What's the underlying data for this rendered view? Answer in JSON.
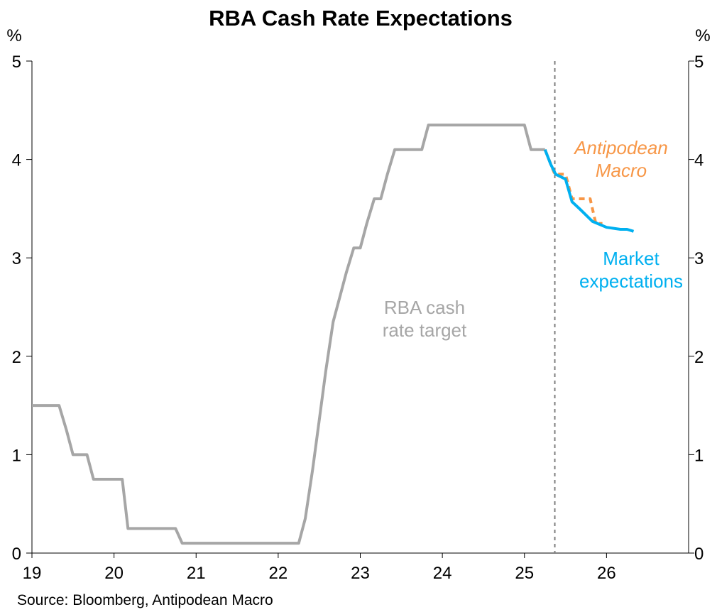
{
  "chart_data": {
    "type": "line",
    "title": "RBA Cash Rate Expectations",
    "y_unit_left": "%",
    "y_unit_right": "%",
    "ylim": [
      0,
      5
    ],
    "yticks": [
      "0",
      "1",
      "2",
      "3",
      "4",
      "5"
    ],
    "xlim": [
      19,
      27
    ],
    "xticks": [
      "19",
      "20",
      "21",
      "22",
      "23",
      "24",
      "25",
      "26"
    ],
    "grid": false,
    "legend": "none",
    "forecast_divider_x": 25.37,
    "source": "Source: Bloomberg, Antipodean Macro",
    "series": [
      {
        "name": "RBA cash rate target",
        "label_lines": [
          "RBA cash",
          "rate target"
        ],
        "color": "#a6a6a6",
        "dash": "none",
        "points": [
          [
            19.0,
            1.5
          ],
          [
            19.33,
            1.5
          ],
          [
            19.42,
            1.25
          ],
          [
            19.5,
            1.0
          ],
          [
            19.67,
            1.0
          ],
          [
            19.75,
            0.75
          ],
          [
            20.1,
            0.75
          ],
          [
            20.17,
            0.25
          ],
          [
            20.75,
            0.25
          ],
          [
            20.83,
            0.1
          ],
          [
            22.25,
            0.1
          ],
          [
            22.33,
            0.35
          ],
          [
            22.42,
            0.85
          ],
          [
            22.5,
            1.35
          ],
          [
            22.58,
            1.85
          ],
          [
            22.67,
            2.35
          ],
          [
            22.75,
            2.6
          ],
          [
            22.83,
            2.85
          ],
          [
            22.92,
            3.1
          ],
          [
            23.0,
            3.1
          ],
          [
            23.08,
            3.35
          ],
          [
            23.17,
            3.6
          ],
          [
            23.25,
            3.6
          ],
          [
            23.33,
            3.85
          ],
          [
            23.42,
            4.1
          ],
          [
            23.75,
            4.1
          ],
          [
            23.83,
            4.35
          ],
          [
            25.0,
            4.35
          ],
          [
            25.08,
            4.1
          ],
          [
            25.25,
            4.1
          ]
        ]
      },
      {
        "name": "Antipodean Macro",
        "label_lines": [
          "Antipodean",
          "Macro"
        ],
        "color": "#f79646",
        "dash": "8,6",
        "points": [
          [
            25.25,
            4.1
          ],
          [
            25.37,
            3.85
          ],
          [
            25.5,
            3.85
          ],
          [
            25.58,
            3.6
          ],
          [
            25.8,
            3.6
          ],
          [
            25.87,
            3.35
          ],
          [
            25.95,
            3.35
          ]
        ]
      },
      {
        "name": "Market expectations",
        "label_lines": [
          "Market",
          "expectations"
        ],
        "color": "#00b0f0",
        "dash": "none",
        "points": [
          [
            25.25,
            4.1
          ],
          [
            25.32,
            3.95
          ],
          [
            25.38,
            3.85
          ],
          [
            25.5,
            3.8
          ],
          [
            25.58,
            3.57
          ],
          [
            25.67,
            3.5
          ],
          [
            25.83,
            3.37
          ],
          [
            26.0,
            3.31
          ],
          [
            26.17,
            3.29
          ],
          [
            26.25,
            3.29
          ],
          [
            26.33,
            3.27
          ]
        ]
      }
    ]
  }
}
